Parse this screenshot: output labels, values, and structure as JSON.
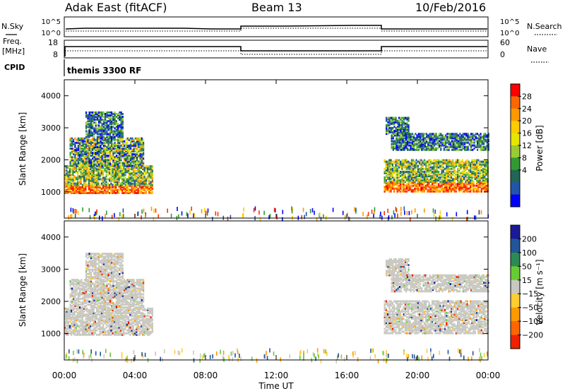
{
  "header": {
    "radar": "Adak East (fitACF)",
    "beam": "Beam 13",
    "date": "10/Feb/2016"
  },
  "top_panel": {
    "left_label": "N.Sky",
    "right_label": "N.Search",
    "left_ticks": [
      "10^5",
      "10^0"
    ],
    "right_ticks": [
      "10^5",
      "10^0"
    ]
  },
  "freq_panel": {
    "left_label_1": "Freq.",
    "left_label_2": "[MHz]",
    "right_label": "Nave",
    "left_ticks": [
      "18",
      "8"
    ],
    "right_ticks": [
      "60",
      "0"
    ]
  },
  "cpid_panel": {
    "label": "CPID",
    "text": "themis 3300 RF"
  },
  "chart_data": [
    {
      "type": "heatmap",
      "name": "power",
      "ylabel": "Slant Range [km]",
      "yticks": [
        1000,
        2000,
        3000,
        4000
      ],
      "ylim": [
        180,
        4500
      ],
      "xlim_hours": [
        0,
        24
      ],
      "colorbar": {
        "label": "Power [dB]",
        "ticks": [
          "28",
          "24",
          "20",
          "16",
          "12",
          "8",
          "4"
        ],
        "colors": [
          "#ff0000",
          "#ff6600",
          "#ff9900",
          "#ffcc00",
          "#e6e600",
          "#99cc33",
          "#339933",
          "#226655",
          "#2255aa",
          "#0000ff"
        ]
      },
      "regions": [
        {
          "t0": 0.0,
          "t1": 5.0,
          "r0": 950,
          "r1": 1200,
          "level": "high"
        },
        {
          "t0": 0.0,
          "t1": 5.0,
          "r0": 1200,
          "r1": 1800,
          "level": "mid"
        },
        {
          "t0": 0.3,
          "t1": 4.5,
          "r0": 1800,
          "r1": 2700,
          "level": "mixed"
        },
        {
          "t0": 1.2,
          "t1": 3.3,
          "r0": 2700,
          "r1": 3500,
          "level": "low"
        },
        {
          "t0": 18.1,
          "t1": 24.0,
          "r0": 1000,
          "r1": 1300,
          "level": "high"
        },
        {
          "t0": 18.1,
          "t1": 24.0,
          "r0": 1300,
          "r1": 2000,
          "level": "mid"
        },
        {
          "t0": 18.5,
          "t1": 24.0,
          "r0": 2300,
          "r1": 2800,
          "level": "low"
        },
        {
          "t0": 18.2,
          "t1": 19.5,
          "r0": 2800,
          "r1": 3300,
          "level": "low"
        }
      ]
    },
    {
      "type": "heatmap",
      "name": "velocity",
      "ylabel": "Slant Range [km]",
      "yticks": [
        1000,
        2000,
        3000,
        4000
      ],
      "ylim": [
        180,
        4500
      ],
      "xlim_hours": [
        0,
        24
      ],
      "xticks": [
        "00:00",
        "04:00",
        "08:00",
        "12:00",
        "16:00",
        "20:00",
        "00:00"
      ],
      "xlabel": "Time UT",
      "colorbar": {
        "label": "Velocity [m s⁻¹]",
        "ticks": [
          "200",
          "100",
          "50",
          "15",
          "−15",
          "−50",
          "−100",
          "−200"
        ],
        "colors": [
          "#1a1a99",
          "#225599",
          "#2c8a55",
          "#66cc33",
          "#c8c8c0",
          "#ffcc33",
          "#ff9900",
          "#ff6600",
          "#ee2200"
        ]
      },
      "regions": [
        {
          "t0": 0.0,
          "t1": 5.0,
          "r0": 950,
          "r1": 1800,
          "level": "gray"
        },
        {
          "t0": 0.3,
          "t1": 4.5,
          "r0": 1800,
          "r1": 2700,
          "level": "gray"
        },
        {
          "t0": 1.2,
          "t1": 3.3,
          "r0": 2700,
          "r1": 3500,
          "level": "gray"
        },
        {
          "t0": 18.1,
          "t1": 24.0,
          "r0": 1000,
          "r1": 2000,
          "level": "gray"
        },
        {
          "t0": 18.5,
          "t1": 24.0,
          "r0": 2300,
          "r1": 2800,
          "level": "gray"
        },
        {
          "t0": 18.2,
          "t1": 19.5,
          "r0": 2800,
          "r1": 3300,
          "level": "gray"
        }
      ]
    }
  ],
  "colors": {
    "background": "#ffffff",
    "axis": "#000000",
    "velocity_ground": "#c8c8c0"
  }
}
